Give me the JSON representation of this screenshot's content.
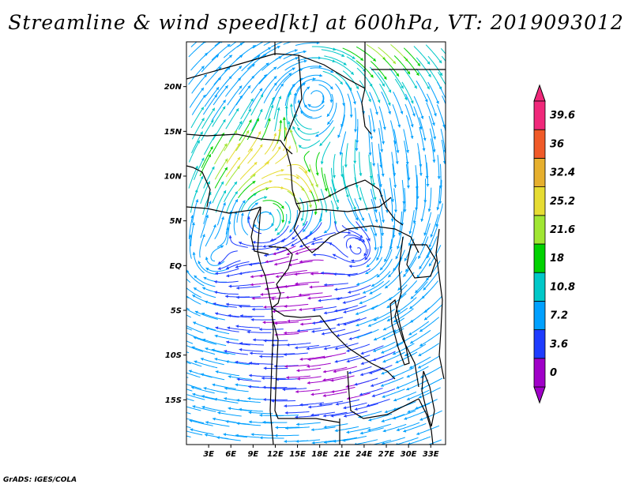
{
  "title": "Streamline & wind speed[kt] at 600hPa, VT: 2019093012",
  "footer": "GrADS: IGES/COLA",
  "map": {
    "lon_range": [
      0,
      35
    ],
    "lat_range": [
      -20,
      25
    ],
    "lon_ticks": [
      {
        "value": 3,
        "label": "3E"
      },
      {
        "value": 6,
        "label": "6E"
      },
      {
        "value": 9,
        "label": "9E"
      },
      {
        "value": 12,
        "label": "12E"
      },
      {
        "value": 15,
        "label": "15E"
      },
      {
        "value": 18,
        "label": "18E"
      },
      {
        "value": 21,
        "label": "21E"
      },
      {
        "value": 24,
        "label": "24E"
      },
      {
        "value": 27,
        "label": "27E"
      },
      {
        "value": 30,
        "label": "30E"
      },
      {
        "value": 33,
        "label": "33E"
      }
    ],
    "lat_ticks": [
      {
        "value": 20,
        "label": "20N"
      },
      {
        "value": 15,
        "label": "15N"
      },
      {
        "value": 10,
        "label": "10N"
      },
      {
        "value": 5,
        "label": "5N"
      },
      {
        "value": 0,
        "label": "EQ"
      },
      {
        "value": -5,
        "label": "5S"
      },
      {
        "value": -10,
        "label": "10S"
      },
      {
        "value": -15,
        "label": "15S"
      }
    ],
    "vortices": [
      {
        "name": "north-vortex",
        "lon": 17.5,
        "lat": 19.0
      },
      {
        "name": "west-equatorial-vortex",
        "lon": 3.5,
        "lat": 0.5
      },
      {
        "name": "central-vortex",
        "lon": 10.5,
        "lat": 5.0
      },
      {
        "name": "east-vortex",
        "lon": 23.5,
        "lat": 1.5
      }
    ]
  },
  "colorbar": {
    "levels": [
      "0",
      "3.6",
      "7.2",
      "10.8",
      "18",
      "21.6",
      "25.2",
      "32.4",
      "36",
      "39.6"
    ],
    "colors": [
      "#a000c8",
      "#1e3cff",
      "#00a0ff",
      "#00c8c8",
      "#00d200",
      "#a0e632",
      "#e6dc32",
      "#e6af2d",
      "#f05a28",
      "#f0287a"
    ]
  }
}
